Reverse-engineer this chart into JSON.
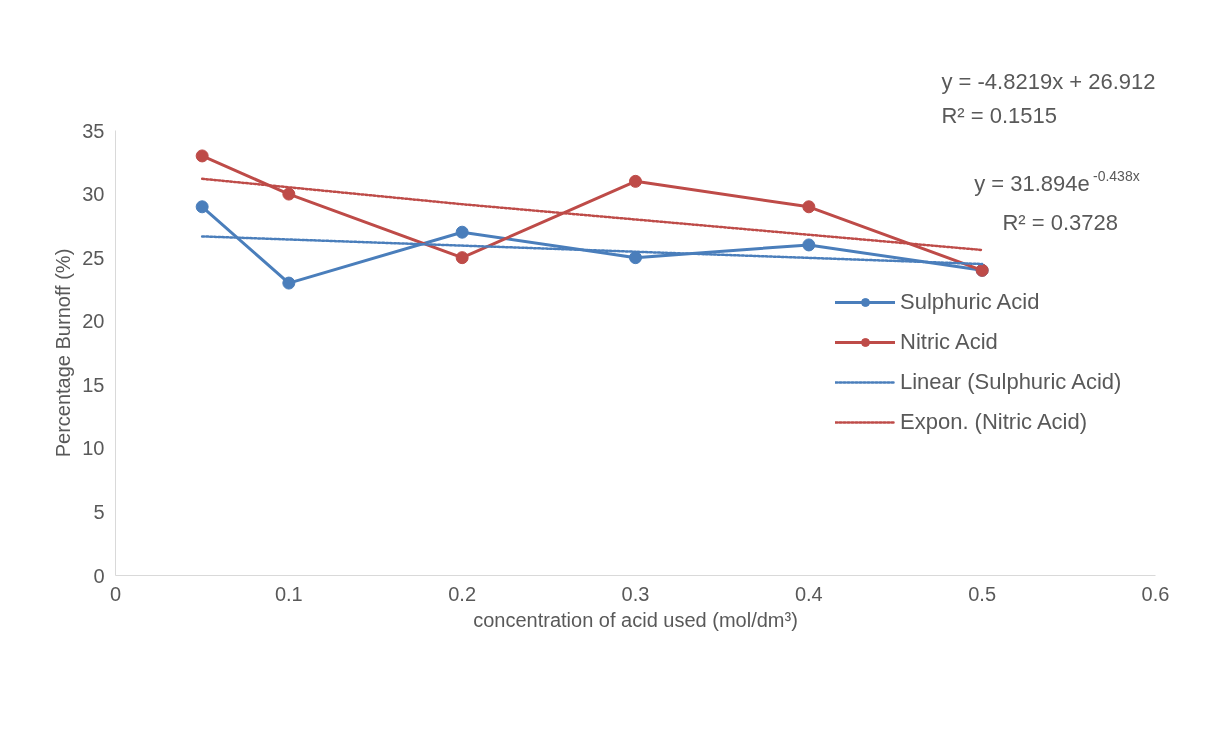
{
  "chart_data": {
    "type": "line",
    "xlabel": "concentration of acid used (mol/dm³)",
    "ylabel": "Percentage Burnoff (%)",
    "xlim": [
      0,
      0.6
    ],
    "xticks": [
      0,
      0.1,
      0.2,
      0.3,
      0.4,
      0.5,
      0.6
    ],
    "ylim": [
      0,
      35
    ],
    "yticks": [
      0,
      5,
      10,
      15,
      20,
      25,
      30,
      35
    ],
    "grid": false,
    "legend": "right",
    "annotations": [
      "y = -4.8219x + 26.912\nR² = 0.1515",
      "y = 31.894e$^{-0.438x}$\nR² = 0.3728"
    ],
    "series": [
      {
        "name": "Sulphuric Acid",
        "color": "#4a7ebb",
        "marker": "circle",
        "line_style": "solid",
        "x": [
          0.05,
          0.1,
          0.2,
          0.3,
          0.4,
          0.5
        ],
        "values": [
          29,
          23,
          27,
          25,
          26,
          24
        ]
      },
      {
        "name": "Nitric Acid",
        "color": "#be4b48",
        "marker": "circle",
        "line_style": "solid",
        "x": [
          0.05,
          0.1,
          0.2,
          0.3,
          0.4,
          0.5
        ],
        "values": [
          33,
          30,
          25,
          31,
          29,
          24
        ]
      },
      {
        "name": "Linear (Sulphuric Acid)",
        "color": "#4a7ebb",
        "marker": "none",
        "line_style": "dotted",
        "x": [
          0.05,
          0.5
        ],
        "values": [
          26.67,
          24.5
        ]
      },
      {
        "name": "Expon. (Nitric Acid)",
        "color": "#be4b48",
        "marker": "none",
        "line_style": "dotted",
        "x": [
          0.05,
          0.2,
          0.3,
          0.4,
          0.5
        ],
        "values": [
          31.2,
          29.2,
          28.0,
          26.8,
          25.6
        ]
      }
    ]
  }
}
